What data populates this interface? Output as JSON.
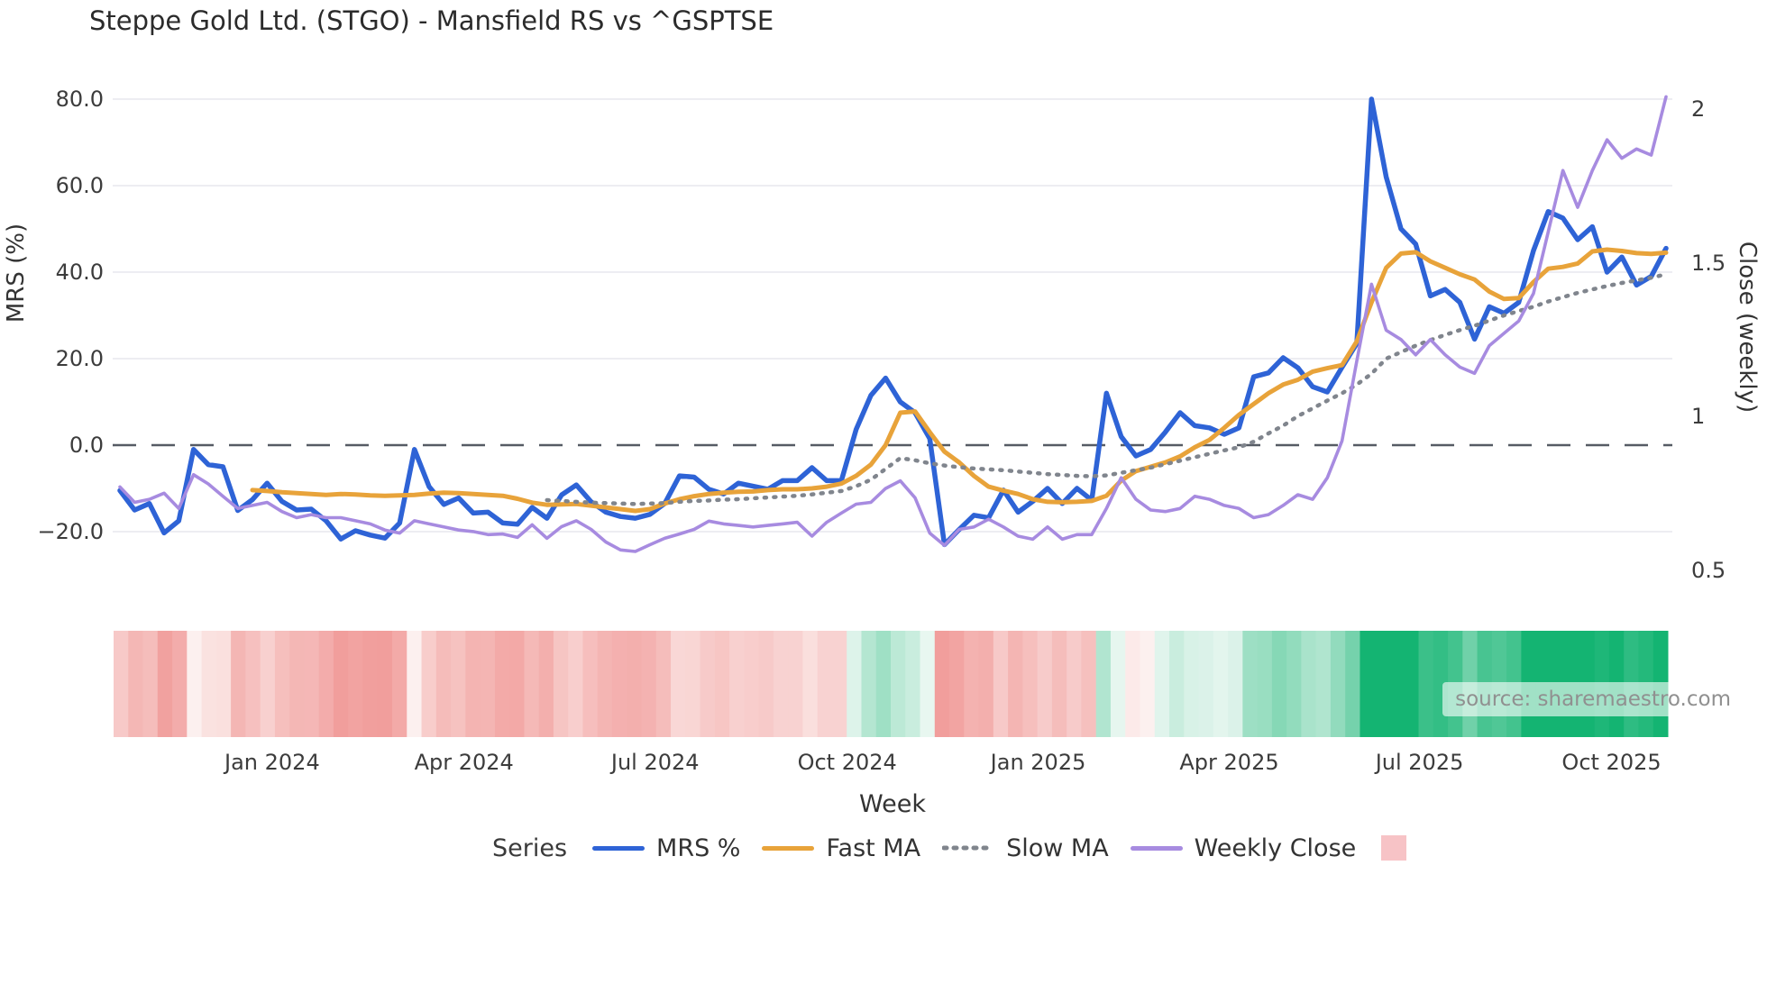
{
  "title": "Steppe Gold Ltd. (STGO) - Mansfield RS vs ^GSPTSE",
  "source_note": "source: sharemaestro.com",
  "axes": {
    "y_left": {
      "label": "MRS (%)",
      "tick_labels": [
        "80.0",
        "60.0",
        "40.0",
        "20.0",
        "0.0",
        "−20.0"
      ],
      "tick_values": [
        80,
        60,
        40,
        20,
        0,
        -20
      ]
    },
    "y_right": {
      "label": "Close (weekly)",
      "tick_labels": [
        "2",
        "1.5",
        "1",
        "0.5"
      ],
      "tick_values": [
        2,
        1.5,
        1,
        0.5
      ]
    },
    "x": {
      "label": "Week",
      "tick_labels": [
        "Jan 2024",
        "Apr 2024",
        "Jul 2024",
        "Oct 2024",
        "Jan 2025",
        "Apr 2025",
        "Jul 2025",
        "Oct 2025"
      ],
      "tick_weeks": [
        10.34,
        23.37,
        36.35,
        49.39,
        62.36,
        75.34,
        88.26,
        101.3
      ]
    }
  },
  "legend": {
    "title": "Series",
    "items": [
      {
        "label": "MRS %",
        "color": "#2e63d6",
        "style": "solid"
      },
      {
        "label": "Fast MA",
        "color": "#e8a33a",
        "style": "solid"
      },
      {
        "label": "Slow MA",
        "color": "#80858d",
        "style": "dotted"
      },
      {
        "label": "Weekly Close",
        "color": "#a78be0",
        "style": "solid"
      }
    ],
    "heat_swatch_color": "#f7c3c6"
  },
  "colors": {
    "mrs": "#2e63d6",
    "fast_ma": "#e8a33a",
    "slow_ma": "#80858d",
    "weekly_close": "#a78be0",
    "zero_line": "#565b64",
    "grid": "#ededf2",
    "heat_negative": "#f19e9c",
    "heat_positive": "#14b472"
  },
  "chart_data": {
    "type": "line",
    "title": "Steppe Gold Ltd. (STGO) - Mansfield RS vs ^GSPTSE",
    "xlabel": "Week",
    "ylabel_left": "MRS (%)",
    "ylabel_right": "Close (weekly)",
    "x_weeks": 106,
    "ylim_left": [
      -30,
      85
    ],
    "ylim_right": [
      0.45,
      2.1
    ],
    "grid": true,
    "legend_position": "bottom",
    "zero_reference_line": 0,
    "series": [
      {
        "name": "MRS %",
        "axis": "left",
        "values": [
          -10.5,
          -15,
          -13.5,
          -20.3,
          -17.5,
          -1,
          -4.5,
          -5,
          -15.1,
          -12.6,
          -8.8,
          -13,
          -15,
          -14.8,
          -17.5,
          -21.7,
          -19.8,
          -20.8,
          -21.5,
          -18,
          -1,
          -9.6,
          -13.7,
          -12.2,
          -15.7,
          -15.5,
          -18,
          -18.3,
          -14.4,
          -16.9,
          -11.5,
          -9.2,
          -13.1,
          -15.5,
          -16.5,
          -16.9,
          -16,
          -13.5,
          -7.1,
          -7.4,
          -10.2,
          -11.3,
          -8.8,
          -9.5,
          -10.2,
          -8.2,
          -8.2,
          -5.2,
          -8.2,
          -8.2,
          3.6,
          11.5,
          15.5,
          10,
          7.5,
          1.5,
          -23,
          -19.5,
          -16.2,
          -16.8,
          -10.4,
          -15.5,
          -13,
          -10,
          -13.5,
          -10,
          -12.7,
          12,
          2,
          -2.5,
          -1,
          3,
          7.5,
          4.5,
          4,
          2.5,
          4,
          15.8,
          16.7,
          20.2,
          17.9,
          13.5,
          12.3,
          18,
          23.5,
          80,
          62,
          50,
          46.5,
          34.5,
          36,
          33,
          24.5,
          32,
          30.5,
          33,
          45,
          54,
          52.5,
          47.5,
          50.5,
          40,
          43.5,
          37,
          39,
          45.5
        ]
      },
      {
        "name": "Fast MA",
        "axis": "left",
        "values": [
          null,
          null,
          null,
          null,
          null,
          null,
          null,
          null,
          null,
          -10.4,
          -10.6,
          -10.9,
          -11.1,
          -11.3,
          -11.5,
          -11.3,
          -11.4,
          -11.6,
          -11.7,
          -11.6,
          -11.5,
          -11.2,
          -11.0,
          -11.1,
          -11.3,
          -11.5,
          -11.7,
          -12.4,
          -13.3,
          -13.8,
          -13.7,
          -13.6,
          -14.0,
          -14.4,
          -14.8,
          -15.2,
          -14.8,
          -13.5,
          -12.5,
          -11.8,
          -11.3,
          -11.0,
          -10.8,
          -10.7,
          -10.4,
          -10.2,
          -10.2,
          -10.0,
          -9.6,
          -8.9,
          -7.1,
          -4.5,
          0,
          7.5,
          7.8,
          3,
          -1.5,
          -4,
          -7.1,
          -9.6,
          -10.5,
          -11.3,
          -12.5,
          -13.1,
          -13.2,
          -13.1,
          -12.9,
          -11.7,
          -8.2,
          -6,
          -5,
          -4,
          -2.6,
          -0.5,
          1.2,
          4,
          7,
          9.5,
          12,
          14,
          15.1,
          17,
          17.8,
          18.5,
          24,
          33,
          41,
          44.3,
          44.6,
          42.5,
          41,
          39.5,
          38.3,
          35.5,
          33.8,
          34,
          37.7,
          40.8,
          41.2,
          42,
          44.8,
          45.2,
          44.9,
          44.4,
          44.2,
          44.5
        ]
      },
      {
        "name": "Slow MA",
        "axis": "left",
        "values": [
          null,
          null,
          null,
          null,
          null,
          null,
          null,
          null,
          null,
          null,
          null,
          null,
          null,
          null,
          null,
          null,
          null,
          null,
          null,
          null,
          null,
          null,
          null,
          null,
          null,
          null,
          null,
          null,
          null,
          -12.7,
          -12.9,
          -13.1,
          -13.3,
          -13.4,
          -13.5,
          -13.6,
          -13.5,
          -13.4,
          -13.1,
          -12.9,
          -12.8,
          -12.6,
          -12.5,
          -12.3,
          -12.1,
          -11.9,
          -11.7,
          -11.4,
          -11.0,
          -10.6,
          -9.5,
          -8,
          -5.5,
          -3,
          -3.5,
          -4.2,
          -4.7,
          -5.1,
          -5.4,
          -5.6,
          -5.8,
          -6.1,
          -6.4,
          -6.7,
          -6.9,
          -7.1,
          -7.2,
          -7.0,
          -6.4,
          -5.8,
          -5.2,
          -4.4,
          -3.6,
          -2.8,
          -2.0,
          -1.2,
          -0.5,
          0.8,
          2.7,
          4.5,
          6.7,
          8.5,
          10.3,
          12,
          14,
          16.5,
          20,
          21.5,
          23,
          24.3,
          25.5,
          26.6,
          27.6,
          28.8,
          30,
          31,
          32,
          33.2,
          34.2,
          35.2,
          36,
          36.8,
          37.5,
          38.1,
          38.7,
          39.5
        ]
      },
      {
        "name": "Weekly Close",
        "axis": "right",
        "values": [
          0.77,
          0.72,
          0.73,
          0.75,
          0.7,
          0.81,
          0.78,
          0.74,
          0.7,
          0.71,
          0.72,
          0.69,
          0.67,
          0.68,
          0.67,
          0.67,
          0.66,
          0.65,
          0.63,
          0.62,
          0.66,
          0.65,
          0.64,
          0.63,
          0.625,
          0.615,
          0.617,
          0.606,
          0.647,
          0.603,
          0.641,
          0.66,
          0.632,
          0.591,
          0.565,
          0.56,
          0.582,
          0.603,
          0.617,
          0.632,
          0.659,
          0.65,
          0.645,
          0.64,
          0.645,
          0.65,
          0.655,
          0.61,
          0.655,
          0.685,
          0.714,
          0.72,
          0.765,
          0.79,
          0.735,
          0.62,
          0.58,
          0.632,
          0.64,
          0.665,
          0.64,
          0.61,
          0.6,
          0.64,
          0.6,
          0.615,
          0.615,
          0.7,
          0.8,
          0.73,
          0.695,
          0.69,
          0.7,
          0.74,
          0.73,
          0.71,
          0.7,
          0.67,
          0.68,
          0.71,
          0.745,
          0.73,
          0.8,
          0.92,
          1.18,
          1.43,
          1.28,
          1.25,
          1.2,
          1.25,
          1.2,
          1.16,
          1.14,
          1.23,
          1.27,
          1.31,
          1.4,
          1.6,
          1.8,
          1.68,
          1.8,
          1.9,
          1.84,
          1.87,
          1.85,
          2.04
        ]
      }
    ],
    "heatmap_strip": {
      "description": "weekly relative-strength heat strip below chart, red negative to green positive, one cell per week, colored from MRS % value",
      "source_series": "MRS %"
    }
  }
}
